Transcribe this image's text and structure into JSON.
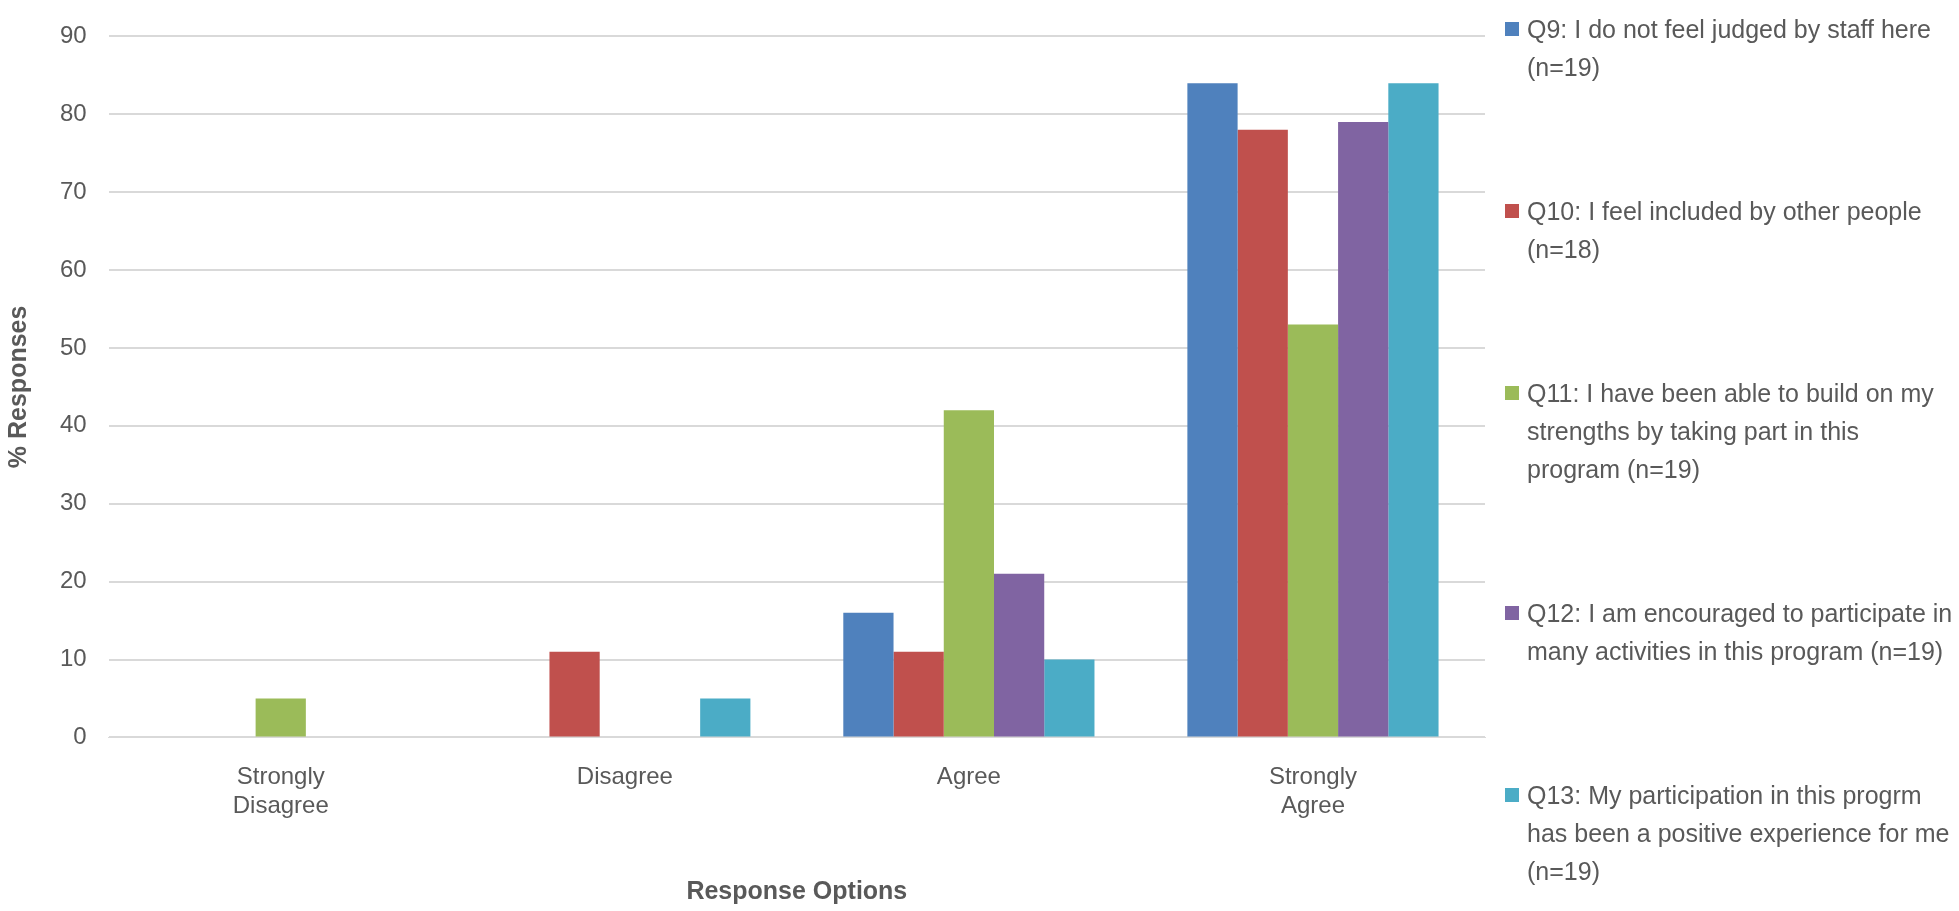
{
  "chart_data": {
    "type": "bar",
    "xlabel": "Response Options",
    "ylabel": "% Responses",
    "categories": [
      "Strongly Disagree",
      "Disagree",
      "Agree",
      "Strongly Agree"
    ],
    "series": [
      {
        "name": "Q9: I do not feel judged by staff here (n=19)",
        "color": "#4f81bd",
        "values": [
          0,
          0,
          16,
          84
        ]
      },
      {
        "name": "Q10: I feel included by other people (n=18)",
        "color": "#c0504d",
        "values": [
          0,
          11,
          11,
          78
        ]
      },
      {
        "name": "Q11: I have been able to build on my strengths by taking part in this program (n=19)",
        "color": "#9bbb59",
        "values": [
          5,
          0,
          42,
          53
        ]
      },
      {
        "name": "Q12: I am encouraged to participate in many activities in this program (n=19)",
        "color": "#8064a2",
        "values": [
          0,
          0,
          21,
          79
        ]
      },
      {
        "name": "Q13: My participation in this progrm has been a positive experience for me (n=19)",
        "color": "#4bacc6",
        "values": [
          0,
          5,
          10,
          84
        ]
      }
    ],
    "ylim": [
      0,
      90
    ],
    "yticks": [
      0,
      10,
      20,
      30,
      40,
      50,
      60,
      70,
      80,
      90
    ],
    "grid": "y",
    "legend": "right"
  }
}
